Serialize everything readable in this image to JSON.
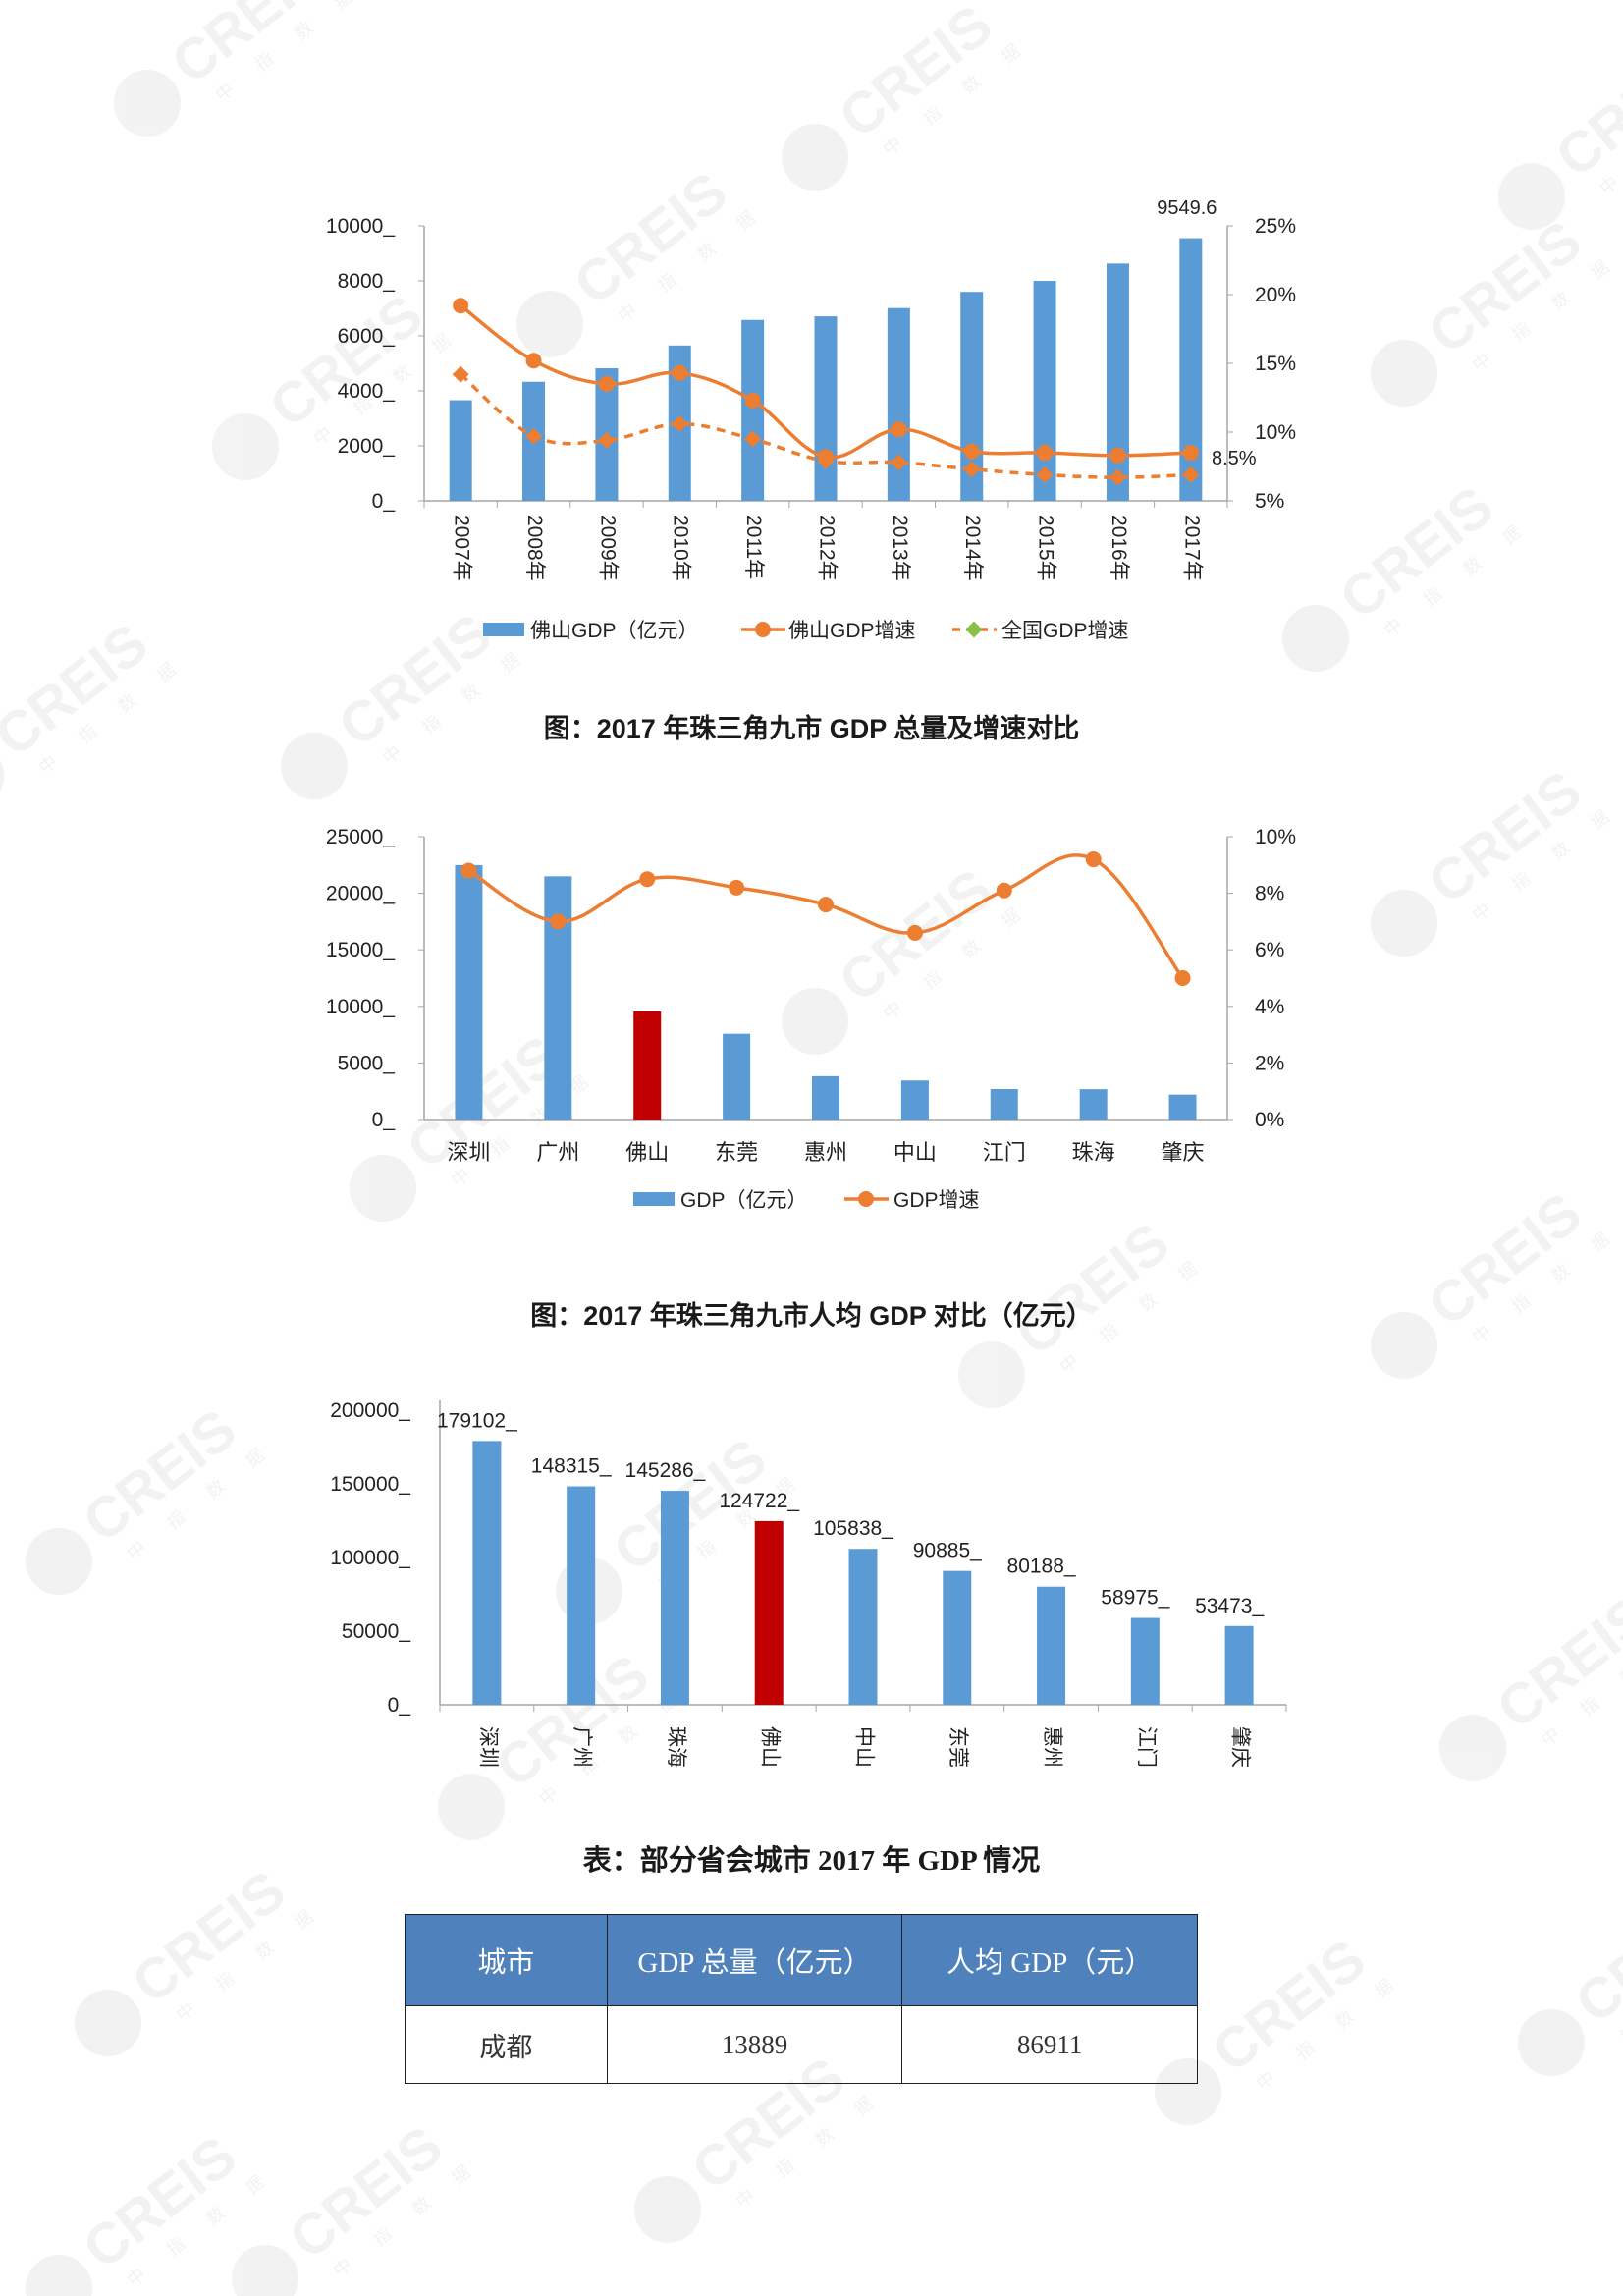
{
  "watermark": {
    "text": "CREIS",
    "sub": "中 指 数 据"
  },
  "captions": {
    "cap1": "图：2017 年珠三角九市 GDP 总量及增速对比",
    "cap2": "图：2017 年珠三角九市人均 GDP 对比（亿元）",
    "cap3": "表：部分省会城市 2017 年 GDP 情况"
  },
  "colors": {
    "bar": "#5b9bd5",
    "highlight": "#c00000",
    "line": "#ed7d31",
    "header": "#4f81bd"
  },
  "chart_data": [
    {
      "type": "bar",
      "categories": [
        "2007年",
        "2008年",
        "2009年",
        "2010年",
        "2011年",
        "2012年",
        "2013年",
        "2014年",
        "2015年",
        "2016年",
        "2017年"
      ],
      "series": [
        {
          "name": "佛山GDP（亿元）",
          "kind": "bar",
          "axis": "left",
          "values": [
            3660,
            4330,
            4820,
            5650,
            6580,
            6710,
            7010,
            7600,
            8000,
            8630,
            9549.6
          ]
        },
        {
          "name": "佛山GDP增速",
          "kind": "line",
          "axis": "right",
          "values": [
            19.2,
            15.2,
            13.5,
            14.3,
            12.3,
            8.2,
            10.2,
            8.6,
            8.5,
            8.3,
            8.5
          ]
        },
        {
          "name": "全国GDP增速",
          "kind": "line-dashed",
          "axis": "right",
          "values": [
            14.2,
            9.7,
            9.4,
            10.6,
            9.5,
            7.9,
            7.8,
            7.3,
            6.9,
            6.7,
            6.9
          ]
        }
      ],
      "yticks_left": [
        "0_",
        "2000_",
        "4000_",
        "6000_",
        "8000_",
        "10000_"
      ],
      "ylim_left": [
        0,
        10000
      ],
      "yticks_right": [
        "5%",
        "10%",
        "15%",
        "20%",
        "25%"
      ],
      "ylim_right": [
        5,
        25
      ],
      "annotations": [
        "9549.6",
        "8.5%"
      ],
      "legend": [
        "佛山GDP（亿元）",
        "佛山GDP增速",
        "全国GDP增速"
      ],
      "legend_position": "bottom",
      "grid": false
    },
    {
      "type": "bar",
      "categories": [
        "深圳",
        "广州",
        "佛山",
        "东莞",
        "惠州",
        "中山",
        "江门",
        "珠海",
        "肇庆"
      ],
      "highlight": "佛山",
      "series": [
        {
          "name": "GDP（亿元）",
          "kind": "bar",
          "axis": "left",
          "values": [
            22490,
            21500,
            9550,
            7580,
            3830,
            3450,
            2690,
            2680,
            2200
          ]
        },
        {
          "name": "GDP增速",
          "kind": "line",
          "axis": "right",
          "values": [
            8.8,
            7.0,
            8.5,
            8.2,
            7.6,
            6.6,
            8.1,
            9.2,
            5.0
          ]
        }
      ],
      "yticks_left": [
        "0_",
        "5000_",
        "10000_",
        "15000_",
        "20000_",
        "25000_"
      ],
      "ylim_left": [
        0,
        25000
      ],
      "yticks_right": [
        "0%",
        "2%",
        "4%",
        "6%",
        "8%",
        "10%"
      ],
      "ylim_right": [
        0,
        10
      ],
      "legend": [
        "GDP（亿元）",
        "GDP增速"
      ],
      "legend_position": "bottom",
      "grid": false
    },
    {
      "type": "bar",
      "categories": [
        "深圳",
        "广州",
        "珠海",
        "佛山",
        "中山",
        "东莞",
        "惠州",
        "江门",
        "肇庆"
      ],
      "highlight": "佛山",
      "values": [
        179102,
        148315,
        145286,
        124722,
        105838,
        90885,
        80188,
        58975,
        53473
      ],
      "data_labels": [
        "179102_",
        "148315_",
        "145286_",
        "124722_",
        "105838_",
        "90885_",
        "80188_",
        "58975_",
        "53473_"
      ],
      "yticks": [
        "0_",
        "50000_",
        "100000_",
        "150000_",
        "200000_"
      ],
      "ylim": [
        0,
        200000
      ],
      "grid": false
    }
  ],
  "table": {
    "headers": [
      "城市",
      "GDP 总量（亿元）",
      "人均 GDP（元）"
    ],
    "rows": [
      [
        "成都",
        "13889",
        "86911"
      ]
    ]
  }
}
